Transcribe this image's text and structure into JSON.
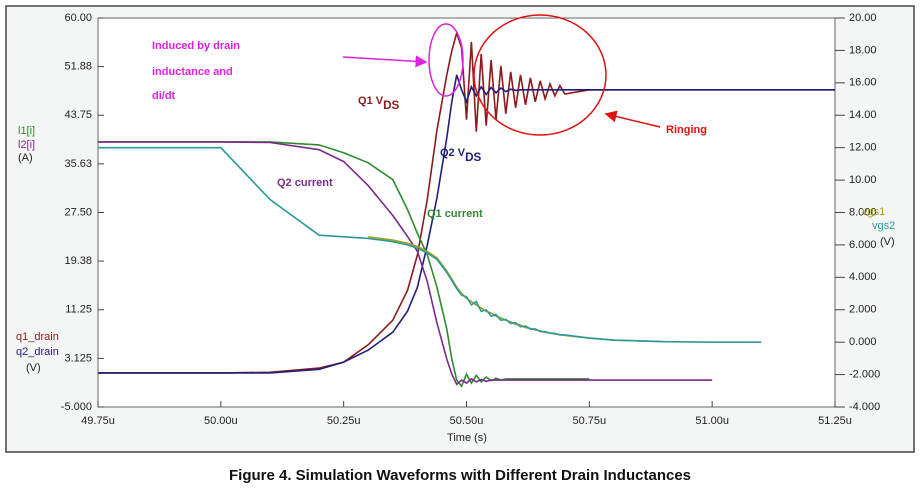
{
  "chart_data": {
    "type": "line",
    "caption": "Figure 4. Simulation Waveforms with Different Drain Inductances",
    "xlabel": "Time (s)",
    "y_units": [
      "(A)",
      "(V)"
    ],
    "y2_unit": "(V)",
    "x": [
      49.75,
      50.0,
      50.1,
      50.2,
      50.25,
      50.3,
      50.35,
      50.38,
      50.4,
      50.42,
      50.44,
      50.46,
      50.47,
      50.48,
      50.49,
      50.5,
      50.51,
      50.52,
      50.53,
      50.54,
      50.55,
      50.56,
      50.57,
      50.58,
      50.59,
      50.6,
      50.61,
      50.62,
      50.63,
      50.64,
      50.65,
      50.66,
      50.67,
      50.68,
      50.69,
      50.7,
      50.75,
      50.8,
      50.9,
      51.0,
      51.1,
      51.25
    ],
    "xlim": [
      49.75,
      51.25
    ],
    "xticks": [
      {
        "value": 49.75,
        "label": "49.75u"
      },
      {
        "value": 50.0,
        "label": "50.00u"
      },
      {
        "value": 50.25,
        "label": "50.25u"
      },
      {
        "value": 50.5,
        "label": "50.50u"
      },
      {
        "value": 50.75,
        "label": "50.75u"
      },
      {
        "value": 51.0,
        "label": "51.00u"
      },
      {
        "value": 51.25,
        "label": "51.25u"
      }
    ],
    "ylim": [
      -5,
      60
    ],
    "yticks": [
      {
        "value": -5,
        "label": "-5.000"
      },
      3.125,
      {
        "value": 11.25,
        "label": "11.25"
      },
      {
        "value": 19.38,
        "label": "19.38"
      },
      {
        "value": 27.5,
        "label": "27.50"
      },
      {
        "value": 35.63,
        "label": "35.63"
      },
      {
        "value": 43.75,
        "label": "43.75"
      },
      {
        "value": 51.88,
        "label": "51.88"
      },
      {
        "value": 60,
        "label": "60.00"
      }
    ],
    "y2lim": [
      -4,
      20
    ],
    "y2ticks": [
      {
        "value": -4,
        "label": "-4.000"
      },
      {
        "value": -2,
        "label": "-2.000"
      },
      {
        "value": 0,
        "label": "0.000"
      },
      {
        "value": 2,
        "label": "2.000"
      },
      {
        "value": 4,
        "label": "4.000"
      },
      {
        "value": 6,
        "label": "6.000"
      },
      {
        "value": 8,
        "label": "8.000"
      },
      {
        "value": 10,
        "label": "10.00"
      },
      {
        "value": 12,
        "label": "12.00"
      },
      {
        "value": 14,
        "label": "14.00"
      },
      {
        "value": 16,
        "label": "16.00"
      },
      {
        "value": 18,
        "label": "18.00"
      },
      {
        "value": 20,
        "label": "20.00"
      }
    ],
    "series": [
      {
        "name": "q1_drain",
        "color": "#8b1a1a",
        "values": [
          0.7,
          0.7,
          0.8,
          1.5,
          2.5,
          5.4,
          9.5,
          14.5,
          20.4,
          29.6,
          41.3,
          50.5,
          54.5,
          57.5,
          55,
          43,
          56,
          41,
          54,
          42,
          53,
          43,
          52,
          44,
          51,
          45,
          50.5,
          45.5,
          50,
          46,
          49.5,
          46.5,
          49,
          47,
          48.7,
          47.3,
          48,
          48,
          48,
          48,
          48,
          48
        ]
      },
      {
        "name": "q2_drain",
        "color": "#1f1f7a",
        "values": [
          0.7,
          0.7,
          0.7,
          1.3,
          2.5,
          4.5,
          7.5,
          11,
          15,
          22,
          30,
          40,
          46,
          50.5,
          48,
          46,
          48.5,
          47,
          48.5,
          47.2,
          48.4,
          47.5,
          48.3,
          47.7,
          48.1,
          47.9,
          48,
          48,
          48,
          48,
          48,
          48,
          48,
          48,
          48,
          48,
          48,
          48,
          48,
          48,
          48,
          48
        ]
      },
      {
        "name": "l1[i]",
        "color": "#2e8b2e",
        "values": [
          39.3,
          39.3,
          39.3,
          38.8,
          37.5,
          35.8,
          33,
          28,
          24,
          20.5,
          15,
          8,
          3,
          -0.5,
          -1.5,
          0.5,
          -1,
          0.3,
          -0.8,
          0,
          -0.6,
          -0.2,
          -0.5,
          -0.3,
          -0.3,
          -0.3,
          -0.3,
          -0.3,
          -0.3,
          -0.3,
          -0.3,
          -0.3,
          -0.3,
          -0.3,
          -0.3,
          -0.3,
          -0.3,
          null,
          null,
          null,
          null,
          null
        ]
      },
      {
        "name": "l2[i]",
        "color": "#7b2a8b",
        "values": [
          39.3,
          39.3,
          39.2,
          38,
          36,
          32,
          27,
          23.5,
          21,
          16,
          9,
          3,
          0.5,
          -1.2,
          -0.5,
          -1,
          -0.3,
          -0.8,
          -0.4,
          -0.7,
          -0.5,
          -0.5,
          -0.5,
          -0.5,
          -0.5,
          -0.5,
          -0.5,
          -0.5,
          -0.5,
          -0.5,
          -0.5,
          -0.5,
          -0.5,
          -0.5,
          -0.5,
          -0.5,
          -0.5,
          -0.5,
          -0.5,
          -0.5,
          null,
          null
        ]
      },
      {
        "name": "vgs1",
        "color": "#a0a020",
        "axis": "y2",
        "values": [
          null,
          null,
          null,
          null,
          null,
          6.5,
          6.3,
          6.1,
          5.9,
          5.6,
          5.2,
          4.4,
          3.9,
          3.4,
          3.0,
          2.7,
          2.5,
          2.3,
          2.1,
          1.9,
          1.8,
          1.6,
          1.5,
          1.35,
          1.25,
          1.1,
          1.05,
          0.9,
          0.85,
          0.75,
          0.7,
          0.6,
          0.58,
          0.5,
          0.47,
          0.42,
          0.25,
          0.13,
          0.04,
          null,
          null,
          null
        ]
      },
      {
        "name": "vgs2",
        "color": "#2a9a9a",
        "axis": "y2",
        "values": [
          12,
          12,
          8.8,
          6.6,
          6.5,
          6.4,
          6.2,
          6.0,
          5.8,
          5.5,
          5.1,
          4.3,
          3.8,
          3.3,
          2.9,
          2.8,
          2.3,
          2.5,
          1.9,
          2.0,
          1.6,
          1.7,
          1.35,
          1.4,
          1.15,
          1.2,
          0.95,
          1.0,
          0.8,
          0.82,
          0.65,
          0.66,
          0.55,
          0.55,
          0.45,
          0.45,
          0.25,
          0.12,
          0.03,
          0,
          0,
          null
        ]
      }
    ],
    "annotations": [
      {
        "text": "Induced by drain"
      },
      {
        "text": "inductance and"
      },
      {
        "text": "di/dt"
      },
      {
        "text": "Q1 V",
        "sub": "DS"
      },
      {
        "text": "Q2 V",
        "sub": "DS"
      },
      {
        "text": "Q2 current"
      },
      {
        "text": "Q1 current"
      },
      {
        "text": "Ringing"
      }
    ]
  }
}
